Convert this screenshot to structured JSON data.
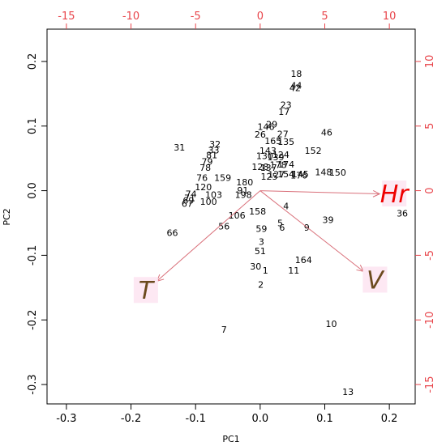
{
  "chart_data": {
    "type": "scatter",
    "subtype": "pca-biplot",
    "xlabel": "PC1",
    "ylabel": "PC2",
    "xlim": [
      -0.33,
      0.24
    ],
    "ylim": [
      -0.33,
      0.25
    ],
    "x_ticks": [
      "-0.3",
      "-0.2",
      "-0.1",
      "0.0",
      "0.1",
      "0.2"
    ],
    "y_ticks": [
      "-0.3",
      "-0.2",
      "-0.1",
      "0.0",
      "0.1",
      "0.2"
    ],
    "top_axis": {
      "range": [
        -16.5,
        12
      ],
      "ticks": [
        "-15",
        "-10",
        "-5",
        "0",
        "5",
        "10"
      ],
      "color": "#e8444a"
    },
    "right_axis": {
      "range": [
        -16.5,
        12.5
      ],
      "ticks": [
        "-15",
        "-10",
        "-5",
        "0",
        "5",
        "10"
      ],
      "color": "#e8444a"
    },
    "arrow_color": "#d9707a",
    "grid": false,
    "points": [
      {
        "label": "18",
        "x": 0.056,
        "y": 0.181
      },
      {
        "label": "44",
        "x": 0.056,
        "y": 0.163
      },
      {
        "label": "42",
        "x": 0.054,
        "y": 0.159
      },
      {
        "label": "23",
        "x": 0.04,
        "y": 0.133
      },
      {
        "label": "17",
        "x": 0.037,
        "y": 0.122
      },
      {
        "label": "29",
        "x": 0.018,
        "y": 0.103
      },
      {
        "label": "146",
        "x": 0.009,
        "y": 0.099
      },
      {
        "label": "27",
        "x": 0.035,
        "y": 0.088
      },
      {
        "label": "26",
        "x": 0.0,
        "y": 0.087
      },
      {
        "label": "165",
        "x": 0.02,
        "y": 0.077
      },
      {
        "label": "135",
        "x": 0.04,
        "y": 0.076
      },
      {
        "label": "46",
        "x": 0.103,
        "y": 0.09
      },
      {
        "label": "152",
        "x": 0.082,
        "y": 0.062
      },
      {
        "label": "143",
        "x": 0.012,
        "y": 0.062
      },
      {
        "label": "124",
        "x": 0.032,
        "y": 0.056
      },
      {
        "label": "130",
        "x": 0.007,
        "y": 0.054
      },
      {
        "label": "139",
        "x": 0.024,
        "y": 0.052
      },
      {
        "label": "148",
        "x": 0.098,
        "y": 0.029
      },
      {
        "label": "150",
        "x": 0.12,
        "y": 0.028
      },
      {
        "label": "128",
        "x": 0.0,
        "y": 0.037
      },
      {
        "label": "137",
        "x": 0.013,
        "y": 0.036
      },
      {
        "label": "178",
        "x": 0.028,
        "y": 0.04
      },
      {
        "label": "174",
        "x": 0.04,
        "y": 0.041
      },
      {
        "label": "154",
        "x": 0.04,
        "y": 0.026
      },
      {
        "label": "176",
        "x": 0.06,
        "y": 0.024
      },
      {
        "label": "125",
        "x": 0.014,
        "y": 0.022
      },
      {
        "label": "127",
        "x": 0.025,
        "y": 0.025
      },
      {
        "label": "145",
        "x": 0.062,
        "y": 0.026
      },
      {
        "label": "38",
        "x": 0.208,
        "y": 0.007
      },
      {
        "label": "36",
        "x": 0.22,
        "y": -0.035
      },
      {
        "label": "32",
        "x": -0.07,
        "y": 0.072
      },
      {
        "label": "31",
        "x": -0.125,
        "y": 0.067
      },
      {
        "label": "33",
        "x": -0.072,
        "y": 0.063
      },
      {
        "label": "81",
        "x": -0.075,
        "y": 0.055
      },
      {
        "label": "79",
        "x": -0.082,
        "y": 0.045
      },
      {
        "label": "78",
        "x": -0.085,
        "y": 0.036
      },
      {
        "label": "76",
        "x": -0.09,
        "y": 0.02
      },
      {
        "label": "159",
        "x": -0.058,
        "y": 0.02
      },
      {
        "label": "180",
        "x": -0.024,
        "y": 0.013
      },
      {
        "label": "120",
        "x": -0.088,
        "y": 0.006
      },
      {
        "label": "91",
        "x": -0.027,
        "y": 0.001
      },
      {
        "label": "103",
        "x": -0.072,
        "y": -0.006
      },
      {
        "label": "198",
        "x": -0.026,
        "y": -0.006
      },
      {
        "label": "74",
        "x": -0.107,
        "y": -0.005
      },
      {
        "label": "71",
        "x": -0.109,
        "y": -0.011
      },
      {
        "label": "69",
        "x": -0.111,
        "y": -0.015
      },
      {
        "label": "67",
        "x": -0.113,
        "y": -0.02
      },
      {
        "label": "100",
        "x": -0.08,
        "y": -0.017
      },
      {
        "label": "158",
        "x": -0.004,
        "y": -0.032
      },
      {
        "label": "106",
        "x": -0.036,
        "y": -0.038
      },
      {
        "label": "4",
        "x": 0.04,
        "y": -0.024
      },
      {
        "label": "39",
        "x": 0.105,
        "y": -0.045
      },
      {
        "label": "5",
        "x": 0.031,
        "y": -0.05
      },
      {
        "label": "9",
        "x": 0.072,
        "y": -0.057
      },
      {
        "label": "6",
        "x": 0.034,
        "y": -0.057
      },
      {
        "label": "56",
        "x": -0.056,
        "y": -0.055
      },
      {
        "label": "59",
        "x": 0.002,
        "y": -0.059
      },
      {
        "label": "66",
        "x": -0.136,
        "y": -0.065
      },
      {
        "label": "3",
        "x": 0.002,
        "y": -0.079
      },
      {
        "label": "51",
        "x": 0.0,
        "y": -0.093
      },
      {
        "label": "164",
        "x": 0.067,
        "y": -0.107
      },
      {
        "label": "30",
        "x": -0.007,
        "y": -0.117
      },
      {
        "label": "1",
        "x": 0.008,
        "y": -0.123
      },
      {
        "label": "11",
        "x": 0.052,
        "y": -0.123
      },
      {
        "label": "2",
        "x": 0.001,
        "y": -0.145
      },
      {
        "label": "10",
        "x": 0.11,
        "y": -0.206
      },
      {
        "label": "7",
        "x": -0.056,
        "y": -0.215
      },
      {
        "label": "13",
        "x": 0.136,
        "y": -0.311
      }
    ],
    "loadings": [
      {
        "name": "Hr",
        "x": 0.185,
        "y": -0.005,
        "color": "#ee0000"
      },
      {
        "name": "T",
        "x": -0.16,
        "y": -0.14,
        "color": "#6b4a1d"
      },
      {
        "name": "V",
        "x": 0.16,
        "y": -0.125,
        "color": "#6b4a1d"
      }
    ]
  }
}
